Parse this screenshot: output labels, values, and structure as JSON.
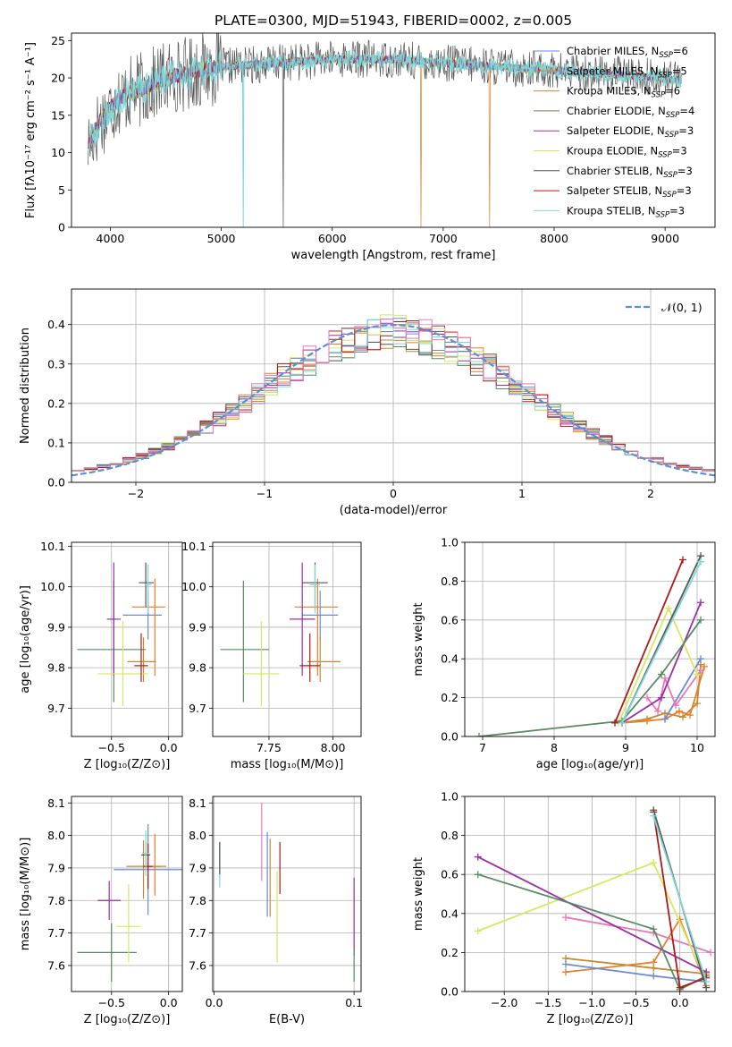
{
  "title": "PLATE=0300, MJD=51943, FIBERID=0002, z=0.005",
  "models": [
    {
      "key": "chab_miles",
      "color": "#6a8ad8",
      "label": "Chabrier MILES, N",
      "sub": "SSP",
      "suffix": "=6"
    },
    {
      "key": "salp_miles",
      "color": "#e87e2a",
      "label": "Salpeter MILES, N",
      "sub": "SSP",
      "suffix": "=5"
    },
    {
      "key": "krou_miles",
      "color": "#c28a30",
      "label": "Kroupa MILES, N",
      "sub": "SSP",
      "suffix": "=6"
    },
    {
      "key": "chab_elodie",
      "color": "#5a8a62",
      "label": "Chabrier ELODIE, N",
      "sub": "SSP",
      "suffix": "=4"
    },
    {
      "key": "salp_elodie",
      "color": "#9a2ea8",
      "label": "Salpeter ELODIE, N",
      "sub": "SSP",
      "suffix": "=3"
    },
    {
      "key": "krou_elodie",
      "color": "#d6e860",
      "label": "Kroupa ELODIE, N",
      "sub": "SSP",
      "suffix": "=3"
    },
    {
      "key": "chab_stelib",
      "color": "#555555",
      "label": "Chabrier STELIB, N",
      "sub": "SSP",
      "suffix": "=3"
    },
    {
      "key": "salp_stelib",
      "color": "#b01818",
      "label": "Salpeter STELIB, N",
      "sub": "SSP",
      "suffix": "=3"
    },
    {
      "key": "krou_stelib",
      "color": "#7fd8d8",
      "label": "Kroupa STELIB, N",
      "sub": "SSP",
      "suffix": "=3"
    }
  ],
  "extra_colors": {
    "pink": "#e878b8",
    "gauss": "#5b8fd6"
  },
  "chart_data": [
    {
      "id": "spectrum",
      "type": "line",
      "xlabel": "wavelength [Angstrom, rest frame]",
      "ylabel": "Flux [fλ10⁻¹⁷ erg cm⁻² s⁻¹ A⁻¹]",
      "xlim": [
        3650,
        9450
      ],
      "ylim": [
        0,
        26
      ],
      "xticks": [
        4000,
        5000,
        6000,
        7000,
        8000,
        9000
      ],
      "yticks": [
        0,
        5,
        10,
        15,
        20,
        25
      ],
      "continuum": [
        [
          3800,
          11
        ],
        [
          3900,
          14
        ],
        [
          4000,
          16
        ],
        [
          4100,
          17.5
        ],
        [
          4300,
          18.5
        ],
        [
          4500,
          20
        ],
        [
          4800,
          21
        ],
        [
          5000,
          21.5
        ],
        [
          5500,
          22
        ],
        [
          6000,
          22.5
        ],
        [
          6500,
          22.5
        ],
        [
          7000,
          22
        ],
        [
          7500,
          21.5
        ],
        [
          8000,
          21
        ],
        [
          8500,
          20.5
        ],
        [
          9000,
          20
        ],
        [
          9150,
          19.5
        ]
      ],
      "drops": [
        {
          "x": 5200,
          "y": 0
        },
        {
          "x": 6800,
          "y": 0
        },
        {
          "x": 7420,
          "y": 0
        },
        {
          "x": 5560,
          "y": 0
        }
      ]
    },
    {
      "id": "residuals",
      "type": "line",
      "xlabel": "(data-model)/error",
      "ylabel": "Normed distribution",
      "xlim": [
        -2.5,
        2.5
      ],
      "ylim": [
        0,
        0.49
      ],
      "xticks": [
        -2,
        -1,
        0,
        1,
        2
      ],
      "yticks": [
        0.0,
        0.1,
        0.2,
        0.3,
        0.4
      ],
      "legend": "$\\mathcal{N}(0,1)$"
    },
    {
      "id": "age_vs_z",
      "type": "scatter",
      "xlabel": "Z [log₁₀(Z/Z⊙)]",
      "ylabel": "age  [log₁₀(age/yr)]",
      "xlim": [
        -0.85,
        0.12
      ],
      "ylim": [
        9.63,
        10.11
      ],
      "xticks": [
        -0.5,
        0.0
      ],
      "yticks": [
        9.7,
        9.8,
        9.9,
        10.0,
        10.1
      ],
      "points": [
        {
          "x": -0.18,
          "y": 9.93,
          "xerr": [
            0.22,
            0.12
          ],
          "yerr": [
            0.06,
            0.06
          ]
        },
        {
          "x": -0.12,
          "y": 9.95,
          "xerr": [
            0.2,
            0.09
          ],
          "yerr": [
            0.17,
            0.07
          ]
        },
        {
          "x": -0.22,
          "y": 9.815,
          "xerr": [
            0.14,
            0.11
          ],
          "yerr": [
            0.05,
            0.06
          ]
        },
        {
          "x": -0.48,
          "y": 9.845,
          "xerr": [
            0.32,
            0.28
          ],
          "yerr": [
            0.13,
            0.17
          ]
        },
        {
          "x": -0.48,
          "y": 9.92,
          "xerr": [
            0.06,
            0.06
          ],
          "yerr": [
            0.14,
            0.14
          ]
        },
        {
          "x": -0.4,
          "y": 9.785,
          "xerr": [
            0.22,
            0.22
          ],
          "yerr": [
            0.08,
            0.13
          ]
        },
        {
          "x": -0.2,
          "y": 10.01,
          "xerr": [
            0.06,
            0.07
          ],
          "yerr": [
            0.06,
            0.05
          ]
        },
        {
          "x": -0.24,
          "y": 9.805,
          "xerr": [
            0.06,
            0.06
          ],
          "yerr": [
            0.04,
            0.08
          ]
        },
        {
          "x": -0.18,
          "y": 10.005,
          "xerr": [
            0.03,
            0.03
          ],
          "yerr": [
            0.07,
            0.05
          ]
        }
      ]
    },
    {
      "id": "age_vs_mass",
      "type": "scatter",
      "xlabel": "mass [log₁₀(M/M⊙)]",
      "ylabel": "",
      "xlim": [
        7.53,
        8.11
      ],
      "ylim": [
        9.63,
        10.11
      ],
      "xticks": [
        7.75,
        8.0
      ],
      "yticks": [
        9.7,
        9.8,
        9.9,
        10.0,
        10.1
      ],
      "points": [
        {
          "x": 7.95,
          "y": 9.93,
          "xerr": [
            0.07,
            0.07
          ],
          "yerr": [
            0.06,
            0.06
          ]
        },
        {
          "x": 7.94,
          "y": 9.95,
          "xerr": [
            0.09,
            0.08
          ],
          "yerr": [
            0.17,
            0.07
          ]
        },
        {
          "x": 7.95,
          "y": 9.815,
          "xerr": [
            0.05,
            0.08
          ],
          "yerr": [
            0.05,
            0.06
          ]
        },
        {
          "x": 7.65,
          "y": 9.845,
          "xerr": [
            0.09,
            0.1
          ],
          "yerr": [
            0.13,
            0.17
          ]
        },
        {
          "x": 7.88,
          "y": 9.92,
          "xerr": [
            0.05,
            0.05
          ],
          "yerr": [
            0.14,
            0.14
          ]
        },
        {
          "x": 7.72,
          "y": 9.785,
          "xerr": [
            0.07,
            0.07
          ],
          "yerr": [
            0.08,
            0.13
          ]
        },
        {
          "x": 7.93,
          "y": 10.01,
          "xerr": [
            0.05,
            0.05
          ],
          "yerr": [
            0.06,
            0.05
          ]
        },
        {
          "x": 7.91,
          "y": 9.805,
          "xerr": [
            0.04,
            0.04
          ],
          "yerr": [
            0.04,
            0.08
          ]
        },
        {
          "x": 7.93,
          "y": 10.005,
          "xerr": [
            0.02,
            0.02
          ],
          "yerr": [
            0.07,
            0.05
          ]
        }
      ]
    },
    {
      "id": "weight_vs_age",
      "type": "line",
      "xlabel": "age  [log₁₀(age/yr)]",
      "ylabel": "mass weight",
      "xlim": [
        6.75,
        10.25
      ],
      "ylim": [
        0,
        1.0
      ],
      "xticks": [
        7,
        8,
        9,
        10
      ],
      "yticks": [
        0.0,
        0.2,
        0.4,
        0.6,
        0.8,
        1.0
      ],
      "series": [
        {
          "model": "krou_miles",
          "x": [
            8.95,
            9.3,
            9.55,
            9.8,
            10.0,
            10.05
          ],
          "y": [
            0.07,
            0.09,
            0.12,
            0.1,
            0.17,
            0.37
          ]
        },
        {
          "model": "salp_miles",
          "x": [
            8.95,
            9.3,
            9.55,
            9.75,
            9.9,
            10.1
          ],
          "y": [
            0.07,
            0.08,
            0.09,
            0.13,
            0.11,
            0.36
          ]
        },
        {
          "model": "chab_miles",
          "x": [
            9.55,
            10.05
          ],
          "y": [
            0.09,
            0.4
          ]
        },
        {
          "model": "pink",
          "x": [
            9.3,
            9.45,
            9.55,
            9.7,
            10.05
          ],
          "y": [
            0.2,
            0.13,
            0.3,
            0.16,
            0.34
          ]
        },
        {
          "model": "krou_elodie",
          "x": [
            8.9,
            9.6,
            10.0
          ],
          "y": [
            0.07,
            0.66,
            0.32
          ]
        },
        {
          "model": "salp_elodie",
          "x": [
            8.95,
            9.5,
            10.05
          ],
          "y": [
            0.07,
            0.2,
            0.69
          ]
        },
        {
          "model": "chab_elodie",
          "x": [
            6.95,
            8.95,
            9.5,
            10.05
          ],
          "y": [
            0.0,
            0.08,
            0.32,
            0.6
          ]
        },
        {
          "model": "salp_stelib",
          "x": [
            8.85,
            9.8
          ],
          "y": [
            0.07,
            0.91
          ]
        },
        {
          "model": "chab_stelib",
          "x": [
            8.95,
            10.05
          ],
          "y": [
            0.07,
            0.93
          ]
        },
        {
          "model": "krou_stelib",
          "x": [
            8.95,
            10.05
          ],
          "y": [
            0.07,
            0.9
          ]
        }
      ]
    },
    {
      "id": "mass_vs_z",
      "type": "scatter",
      "xlabel": "Z [log₁₀(Z/Z⊙)]",
      "ylabel": "mass [log₁₀(M/M⊙)]",
      "xlim": [
        -0.85,
        0.12
      ],
      "ylim": [
        7.52,
        8.12
      ],
      "xticks": [
        -0.5,
        0.0
      ],
      "yticks": [
        7.6,
        7.7,
        7.8,
        7.9,
        8.0,
        8.1
      ],
      "points": [
        {
          "x": -0.18,
          "y": 7.895,
          "xerr": [
            0.3,
            0.3
          ],
          "yerr": [
            0.14,
            0.14
          ]
        },
        {
          "x": -0.12,
          "y": 7.905,
          "xerr": [
            0.1,
            0.1
          ],
          "yerr": [
            0.09,
            0.1
          ]
        },
        {
          "x": -0.22,
          "y": 7.905,
          "xerr": [
            0.15,
            0.15
          ],
          "yerr": [
            0.1,
            0.08
          ]
        },
        {
          "x": -0.5,
          "y": 7.64,
          "xerr": [
            0.3,
            0.22
          ],
          "yerr": [
            0.09,
            0.09
          ]
        },
        {
          "x": -0.52,
          "y": 7.8,
          "xerr": [
            0.1,
            0.1
          ],
          "yerr": [
            0.06,
            0.06
          ]
        },
        {
          "x": -0.35,
          "y": 7.72,
          "xerr": [
            0.1,
            0.1
          ],
          "yerr": [
            0.11,
            0.13
          ]
        },
        {
          "x": -0.2,
          "y": 7.94,
          "xerr": [
            0.04,
            0.04
          ],
          "yerr": [
            0.04,
            0.04
          ]
        },
        {
          "x": -0.18,
          "y": 7.905,
          "xerr": [
            0.04,
            0.04
          ],
          "yerr": [
            0.07,
            0.07
          ]
        },
        {
          "x": -0.2,
          "y": 7.945,
          "xerr": [
            0.03,
            0.03
          ],
          "yerr": [
            0.07,
            0.07
          ]
        }
      ]
    },
    {
      "id": "mass_vs_ebv",
      "type": "scatter",
      "xlabel": "E(B-V)",
      "ylabel": "",
      "xlim": [
        -0.001,
        0.105
      ],
      "ylim": [
        7.52,
        8.12
      ],
      "xticks": [
        0.0,
        0.1
      ],
      "yticks": [
        7.6,
        7.7,
        7.8,
        7.9,
        8.0,
        8.1
      ],
      "points": [
        {
          "model": "krou_stelib",
          "x": 0.004,
          "y": 7.91,
          "yerr": [
            0.07,
            0.07
          ]
        },
        {
          "model": "chab_stelib",
          "x": 0.004,
          "y": 7.93,
          "yerr": [
            0.05,
            0.05
          ]
        },
        {
          "model": "pink",
          "x": 0.034,
          "y": 7.98,
          "yerr": [
            0.12,
            0.12
          ]
        },
        {
          "model": "chab_miles",
          "x": 0.038,
          "y": 7.88,
          "yerr": [
            0.13,
            0.13
          ]
        },
        {
          "model": "krou_miles",
          "x": 0.04,
          "y": 7.87,
          "yerr": [
            0.12,
            0.12
          ]
        },
        {
          "model": "krou_elodie",
          "x": 0.045,
          "y": 7.75,
          "yerr": [
            0.14,
            0.14
          ]
        },
        {
          "model": "salp_stelib",
          "x": 0.047,
          "y": 7.9,
          "yerr": [
            0.08,
            0.08
          ]
        },
        {
          "model": "salp_elodie",
          "x": 0.1,
          "y": 7.75,
          "yerr": [
            0.12,
            0.12
          ]
        },
        {
          "model": "chab_elodie",
          "x": 0.1,
          "y": 7.6,
          "yerr": [
            0.05,
            0.05
          ]
        }
      ]
    },
    {
      "id": "weight_vs_z",
      "type": "line",
      "xlabel": "Z [log₁₀(Z/Z⊙)]",
      "ylabel": "mass weight",
      "xlim": [
        -2.45,
        0.4
      ],
      "ylim": [
        0,
        1.0
      ],
      "xticks": [
        -2.0,
        -1.5,
        -1.0,
        -0.5,
        0.0
      ],
      "yticks": [
        0.0,
        0.2,
        0.4,
        0.6,
        0.8,
        1.0
      ],
      "series": [
        {
          "model": "krou_miles",
          "x": [
            -1.3,
            -0.3,
            0.3
          ],
          "y": [
            0.17,
            0.12,
            0.09
          ]
        },
        {
          "model": "salp_miles",
          "x": [
            -1.3,
            -0.3,
            0.0,
            0.3
          ],
          "y": [
            0.1,
            0.15,
            0.37,
            0.03
          ]
        },
        {
          "model": "chab_miles",
          "x": [
            -1.3,
            -0.3,
            0.3
          ],
          "y": [
            0.14,
            0.08,
            0.05
          ]
        },
        {
          "model": "pink",
          "x": [
            -1.3,
            -0.3,
            0.35
          ],
          "y": [
            0.38,
            0.3,
            0.2
          ]
        },
        {
          "model": "krou_elodie",
          "x": [
            -2.3,
            -0.3,
            0.3
          ],
          "y": [
            0.31,
            0.66,
            0.05
          ]
        },
        {
          "model": "salp_elodie",
          "x": [
            -2.3,
            0.3
          ],
          "y": [
            0.69,
            0.1
          ]
        },
        {
          "model": "chab_elodie",
          "x": [
            -2.3,
            -0.3,
            0.0,
            0.3
          ],
          "y": [
            0.6,
            0.32,
            0.01,
            0.08
          ]
        },
        {
          "model": "salp_stelib",
          "x": [
            -0.3,
            0.0,
            0.3
          ],
          "y": [
            0.92,
            0.02,
            0.07
          ]
        },
        {
          "model": "chab_stelib",
          "x": [
            -0.3,
            0.3
          ],
          "y": [
            0.93,
            0.02
          ]
        },
        {
          "model": "krou_stelib",
          "x": [
            -0.3,
            0.3
          ],
          "y": [
            0.9,
            0.05
          ]
        }
      ]
    }
  ]
}
